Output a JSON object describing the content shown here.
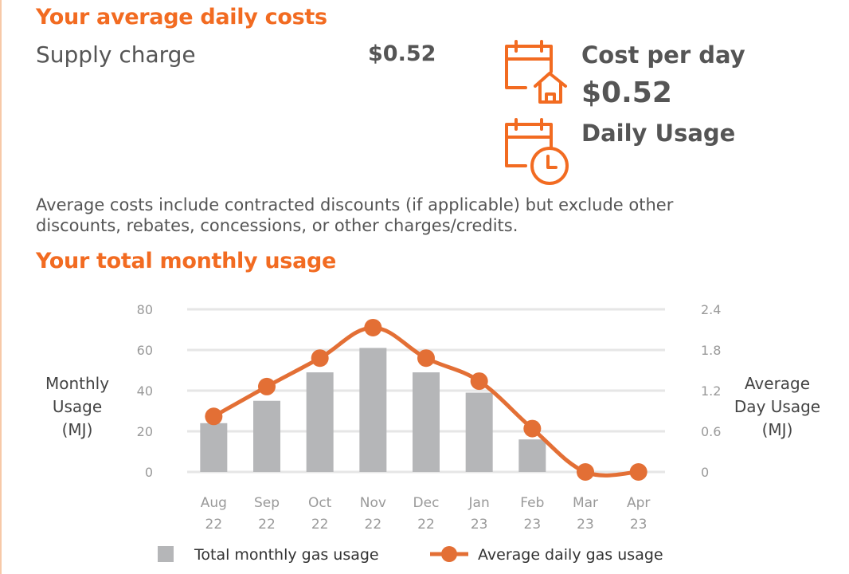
{
  "costs": {
    "heading": "Your average daily costs",
    "supply_label": "Supply charge",
    "supply_value": "$0.52",
    "cost_per_day_label": "Cost per day",
    "cost_per_day_value": "$0.52",
    "daily_usage_label": "Daily Usage",
    "note": "Average costs include contracted discounts (if applicable) but exclude other discounts, rebates, concessions, or other charges/credits."
  },
  "usage": {
    "heading": "Your total monthly usage"
  },
  "colors": {
    "accent": "#f26b21",
    "bar": "#b5b6b8",
    "line": "#e36f35",
    "text": "#555555"
  },
  "chart_data": {
    "type": "bar+line",
    "categories": [
      [
        "Aug",
        "22"
      ],
      [
        "Sep",
        "22"
      ],
      [
        "Oct",
        "22"
      ],
      [
        "Nov",
        "22"
      ],
      [
        "Dec",
        "22"
      ],
      [
        "Jan",
        "23"
      ],
      [
        "Feb",
        "23"
      ],
      [
        "Mar",
        "23"
      ],
      [
        "Apr",
        "23"
      ]
    ],
    "ylabel_left": [
      "Monthly",
      "Usage",
      "(MJ)"
    ],
    "ylabel_right": [
      "Average",
      "Day Usage",
      "(MJ)"
    ],
    "ylim_left": [
      0,
      80
    ],
    "ylim_right": [
      0,
      2.4
    ],
    "yticks_left": [
      "0",
      "20",
      "40",
      "60",
      "80"
    ],
    "yticks_right": [
      "0",
      "0.6",
      "1.2",
      "1.8",
      "2.4"
    ],
    "grid": true,
    "legend_position": "bottom",
    "series": [
      {
        "name": "Total monthly gas usage",
        "type": "bar",
        "axis": "left",
        "values": [
          24,
          35,
          49,
          61,
          49,
          39,
          16,
          0,
          0
        ]
      },
      {
        "name": "Average daily gas usage",
        "type": "line",
        "axis": "right",
        "values": [
          0.82,
          1.26,
          1.68,
          2.13,
          1.68,
          1.34,
          0.64,
          0,
          0
        ]
      }
    ]
  }
}
